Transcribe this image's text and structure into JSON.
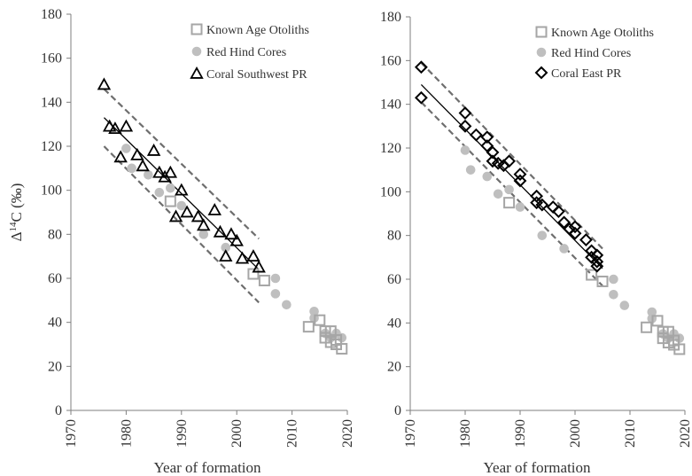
{
  "colors": {
    "otolith": "#a6a6a6",
    "redhind": "#bfbfbf",
    "coral": "#000000",
    "band": "#6e6e6e",
    "axis": "#7f7f7f",
    "text": "#333333"
  },
  "chart_data": [
    {
      "type": "scatter",
      "panel": "left",
      "xlabel": "Year of formation",
      "ylabel_main": "Δ",
      "ylabel_sup": "14",
      "ylabel_rest": "C (‰)",
      "xlim": [
        1970,
        2020
      ],
      "ylim": [
        0,
        180
      ],
      "xticks": [
        1970,
        1980,
        1990,
        2000,
        2010,
        2020
      ],
      "yticks": [
        0,
        20,
        40,
        60,
        80,
        100,
        120,
        140,
        160,
        180
      ],
      "grid": false,
      "legend_position": "top-right",
      "series": [
        {
          "name": "Known Age Otoliths",
          "marker": "square-open",
          "color": "#a6a6a6",
          "points": [
            [
              1988,
              95
            ],
            [
              2003,
              62
            ],
            [
              2005,
              59
            ],
            [
              2013,
              38
            ],
            [
              2015,
              41
            ],
            [
              2016,
              33
            ],
            [
              2016,
              36
            ],
            [
              2017,
              31
            ],
            [
              2017,
              36
            ],
            [
              2018,
              30
            ],
            [
              2018,
              32
            ],
            [
              2019,
              28
            ]
          ]
        },
        {
          "name": "Red Hind Cores",
          "marker": "circle",
          "color": "#bfbfbf",
          "points": [
            [
              1980,
              119
            ],
            [
              1981,
              110
            ],
            [
              1984,
              107
            ],
            [
              1986,
              99
            ],
            [
              1988,
              101
            ],
            [
              1990,
              93
            ],
            [
              1994,
              80
            ],
            [
              1998,
              74
            ],
            [
              2007,
              60
            ],
            [
              2007,
              53
            ],
            [
              2009,
              48
            ],
            [
              2014,
              45
            ],
            [
              2014,
              42
            ],
            [
              2016,
              35
            ],
            [
              2017,
              33
            ],
            [
              2018,
              35
            ],
            [
              2019,
              33
            ]
          ]
        },
        {
          "name": "Coral Southwest PR",
          "marker": "triangle-open",
          "color": "#000000",
          "points": [
            [
              1976,
              148
            ],
            [
              1977,
              129
            ],
            [
              1978,
              128
            ],
            [
              1979,
              115
            ],
            [
              1980,
              129
            ],
            [
              1982,
              116
            ],
            [
              1983,
              111
            ],
            [
              1985,
              118
            ],
            [
              1986,
              108
            ],
            [
              1987,
              106
            ],
            [
              1988,
              108
            ],
            [
              1989,
              88
            ],
            [
              1990,
              100
            ],
            [
              1991,
              90
            ],
            [
              1993,
              88
            ],
            [
              1994,
              84
            ],
            [
              1996,
              91
            ],
            [
              1997,
              81
            ],
            [
              1998,
              70
            ],
            [
              1999,
              80
            ],
            [
              2000,
              77
            ],
            [
              2001,
              69
            ],
            [
              2003,
              70
            ],
            [
              2004,
              65
            ]
          ]
        }
      ],
      "lines": [
        {
          "style": "solid",
          "from": [
            1976,
            133
          ],
          "to": [
            2004,
            64
          ]
        },
        {
          "style": "dashed",
          "from": [
            1976,
            146
          ],
          "to": [
            2004,
            78
          ]
        },
        {
          "style": "dashed",
          "from": [
            1976,
            120
          ],
          "to": [
            2004,
            49
          ]
        }
      ]
    },
    {
      "type": "scatter",
      "panel": "right",
      "xlabel": "Year of formation",
      "xlim": [
        1970,
        2020
      ],
      "ylim": [
        0,
        180
      ],
      "xticks": [
        1970,
        1980,
        1990,
        2000,
        2010,
        2020
      ],
      "yticks": [
        0,
        20,
        40,
        60,
        80,
        100,
        120,
        140,
        160,
        180
      ],
      "grid": false,
      "legend_position": "top-right",
      "series": [
        {
          "name": "Known Age Otoliths",
          "marker": "square-open",
          "color": "#a6a6a6",
          "points": [
            [
              1988,
              95
            ],
            [
              2003,
              62
            ],
            [
              2005,
              59
            ],
            [
              2013,
              38
            ],
            [
              2015,
              41
            ],
            [
              2016,
              33
            ],
            [
              2016,
              36
            ],
            [
              2017,
              31
            ],
            [
              2017,
              36
            ],
            [
              2018,
              30
            ],
            [
              2018,
              32
            ],
            [
              2019,
              28
            ]
          ]
        },
        {
          "name": "Red Hind Cores",
          "marker": "circle",
          "color": "#bfbfbf",
          "points": [
            [
              1980,
              119
            ],
            [
              1981,
              110
            ],
            [
              1984,
              107
            ],
            [
              1986,
              99
            ],
            [
              1988,
              101
            ],
            [
              1990,
              93
            ],
            [
              1994,
              80
            ],
            [
              1998,
              74
            ],
            [
              2007,
              60
            ],
            [
              2007,
              53
            ],
            [
              2009,
              48
            ],
            [
              2014,
              45
            ],
            [
              2014,
              42
            ],
            [
              2016,
              35
            ],
            [
              2017,
              33
            ],
            [
              2018,
              35
            ],
            [
              2019,
              33
            ]
          ]
        },
        {
          "name": "Coral East PR",
          "marker": "diamond-open",
          "color": "#000000",
          "points": [
            [
              1972,
              157
            ],
            [
              1972,
              143
            ],
            [
              1980,
              136
            ],
            [
              1980,
              130
            ],
            [
              1982,
              126
            ],
            [
              1984,
              125
            ],
            [
              1984,
              121
            ],
            [
              1985,
              118
            ],
            [
              1985,
              114
            ],
            [
              1986,
              113
            ],
            [
              1987,
              112
            ],
            [
              1988,
              114
            ],
            [
              1990,
              108
            ],
            [
              1990,
              105
            ],
            [
              1993,
              98
            ],
            [
              1993,
              95
            ],
            [
              1994,
              94
            ],
            [
              1996,
              93
            ],
            [
              1997,
              91
            ],
            [
              1998,
              86
            ],
            [
              1999,
              83
            ],
            [
              2000,
              84
            ],
            [
              2000,
              81
            ],
            [
              2002,
              78
            ],
            [
              2003,
              73
            ],
            [
              2003,
              70
            ],
            [
              2004,
              71
            ],
            [
              2004,
              68
            ],
            [
              2004,
              66
            ]
          ]
        }
      ],
      "lines": [
        {
          "style": "solid",
          "from": [
            1972,
            149
          ],
          "to": [
            2005,
            65
          ]
        },
        {
          "style": "dashed",
          "from": [
            1972,
            159
          ],
          "to": [
            2005,
            74
          ]
        },
        {
          "style": "dashed",
          "from": [
            1972,
            141
          ],
          "to": [
            2005,
            57
          ]
        }
      ]
    }
  ]
}
